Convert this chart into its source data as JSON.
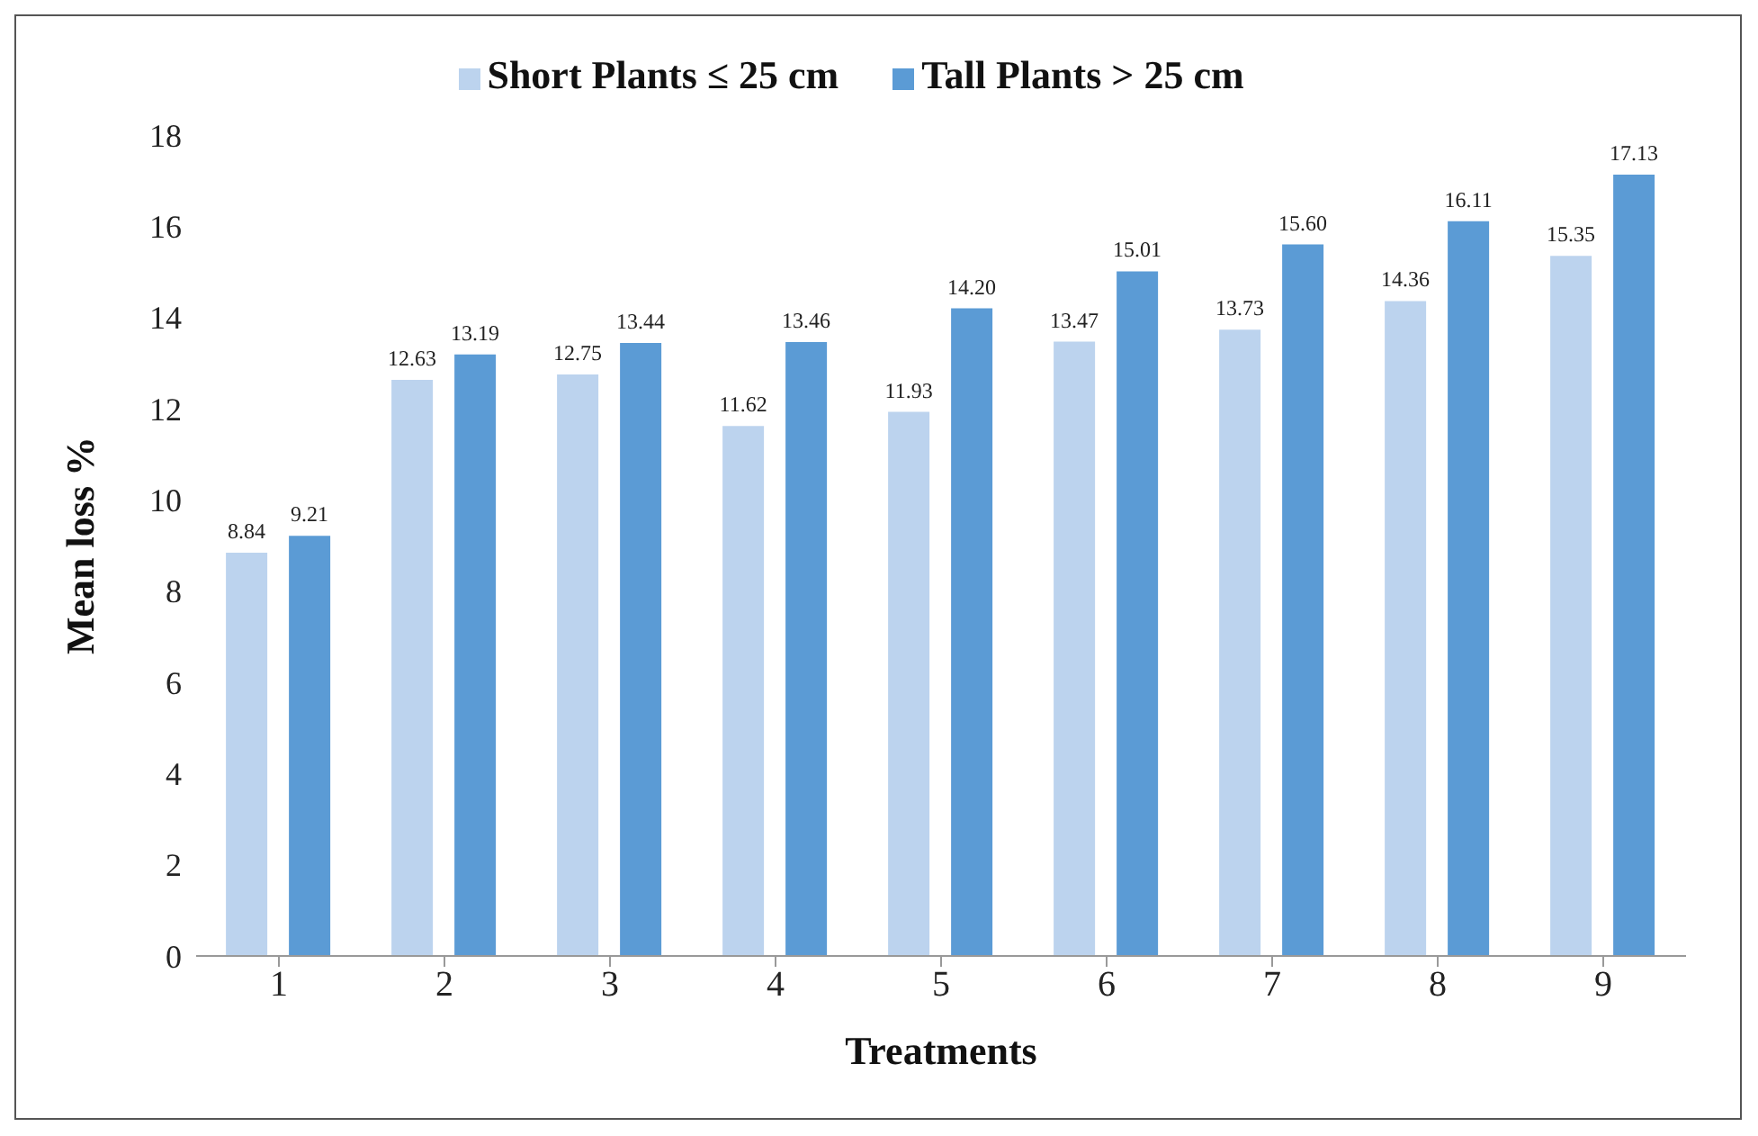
{
  "chart_data": {
    "type": "bar",
    "xlabel": "Treatments",
    "ylabel": "Mean loss %",
    "categories": [
      "1",
      "2",
      "3",
      "4",
      "5",
      "6",
      "7",
      "8",
      "9"
    ],
    "series": [
      {
        "name": "Short Plants ≤ 25 cm",
        "color": "#bcd3ee",
        "values": [
          8.84,
          12.63,
          12.75,
          11.62,
          11.93,
          13.47,
          13.73,
          14.36,
          15.35
        ],
        "value_labels": [
          "8.84",
          "12.63",
          "12.75",
          "11.62",
          "11.93",
          "13.47",
          "13.73",
          "14.36",
          "15.35"
        ]
      },
      {
        "name": "Tall Plants > 25 cm",
        "color": "#5b9bd5",
        "values": [
          9.21,
          13.19,
          13.44,
          13.46,
          14.2,
          15.01,
          15.6,
          16.11,
          17.13
        ],
        "value_labels": [
          "9.21",
          "13.19",
          "13.44",
          "13.46",
          "14.20",
          "15.01",
          "15.60",
          "16.11",
          "17.13"
        ]
      }
    ],
    "ylim": [
      0,
      18
    ],
    "yticks": [
      0,
      2,
      4,
      6,
      8,
      10,
      12,
      14,
      16,
      18
    ],
    "grid": false,
    "legend": "top"
  }
}
